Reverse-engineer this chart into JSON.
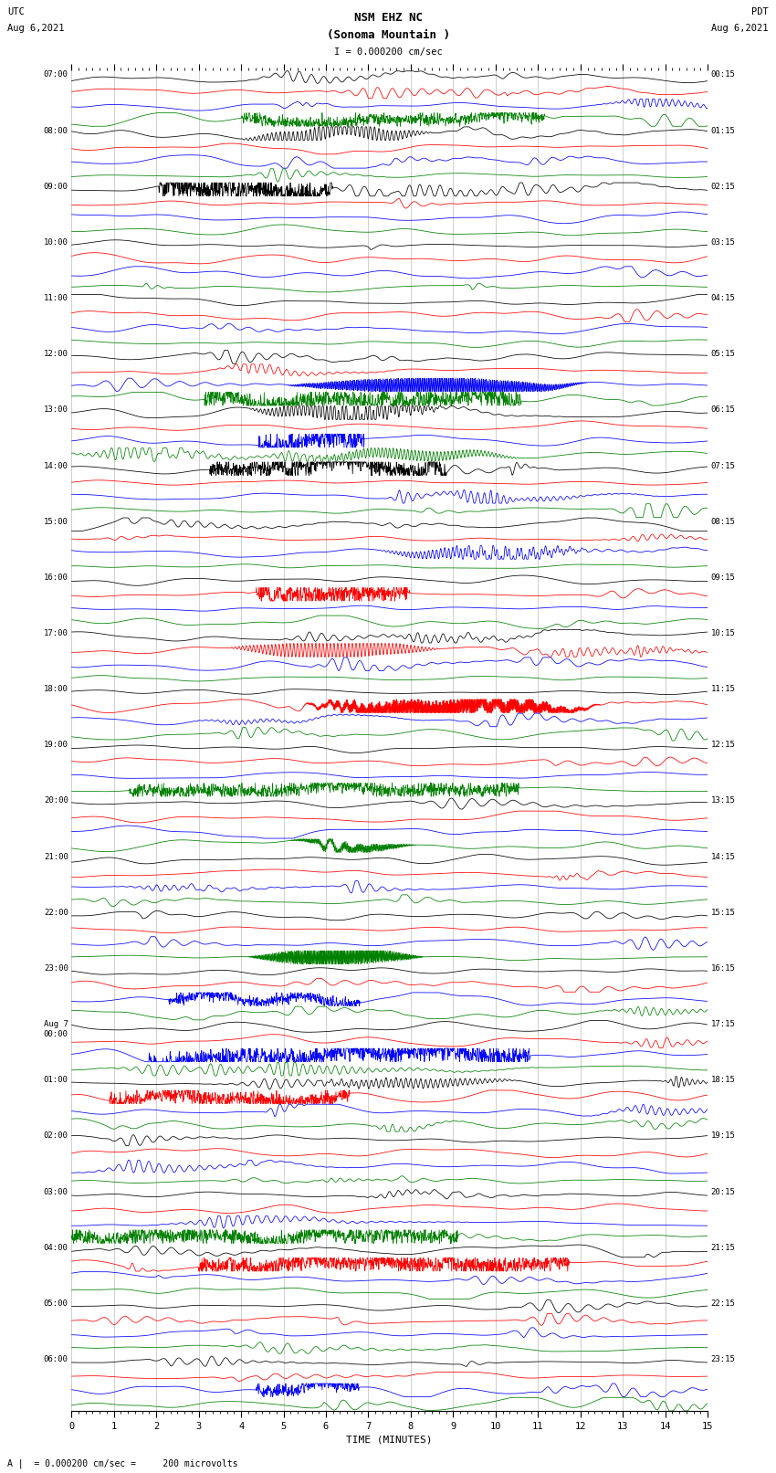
{
  "title_line1": "NSM EHZ NC",
  "title_line2": "(Sonoma Mountain )",
  "title_line3": "I = 0.000200 cm/sec",
  "label_utc": "UTC",
  "label_pdt": "PDT",
  "date_left": "Aug 6,2021",
  "date_right": "Aug 6,2021",
  "xlabel": "TIME (MINUTES)",
  "footnote": "A |  = 0.000200 cm/sec =     200 microvolts",
  "utc_labels": [
    "07:00",
    "08:00",
    "09:00",
    "10:00",
    "11:00",
    "12:00",
    "13:00",
    "14:00",
    "15:00",
    "16:00",
    "17:00",
    "18:00",
    "19:00",
    "20:00",
    "21:00",
    "22:00",
    "23:00",
    "Aug 7\n00:00",
    "01:00",
    "02:00",
    "03:00",
    "04:00",
    "05:00",
    "06:00"
  ],
  "pdt_labels": [
    "00:15",
    "01:15",
    "02:15",
    "03:15",
    "04:15",
    "05:15",
    "06:15",
    "07:15",
    "08:15",
    "09:15",
    "10:15",
    "11:15",
    "12:15",
    "13:15",
    "14:15",
    "15:15",
    "16:15",
    "17:15",
    "18:15",
    "19:15",
    "20:15",
    "21:15",
    "22:15",
    "23:15"
  ],
  "colors": [
    "black",
    "red",
    "blue",
    "green"
  ],
  "n_hours": 24,
  "traces_per_hour": 4,
  "n_cols": 1800,
  "x_max": 15,
  "bg_color": "white",
  "fig_width": 8.5,
  "fig_height": 16.13,
  "dpi": 100,
  "grid_color": "#888888",
  "vline_color": "#888888"
}
